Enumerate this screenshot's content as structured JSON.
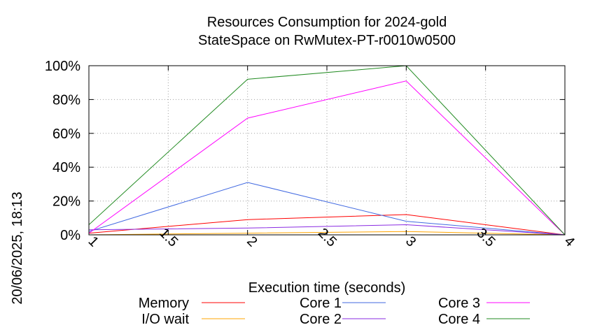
{
  "chart_data": {
    "type": "line",
    "title": "Resources Consumption for 2024-gold",
    "subtitle": "StateSpace on RwMutex-PT-r0010w0500",
    "xlabel": "Execution time (seconds)",
    "ylabel": "",
    "side_label": "20/06/2025, 18:13",
    "xlim": [
      1,
      4
    ],
    "ylim": [
      0,
      100
    ],
    "x_ticks": [
      "1",
      "1.5",
      "2",
      "2.5",
      "3",
      "3.5",
      "4"
    ],
    "x_tick_values": [
      1,
      1.5,
      2,
      2.5,
      3,
      3.5,
      4
    ],
    "y_ticks": [
      "0%",
      "20%",
      "40%",
      "60%",
      "80%",
      "100%"
    ],
    "y_tick_values": [
      0,
      20,
      40,
      60,
      80,
      100
    ],
    "grid": true,
    "legend_position": "bottom",
    "x": [
      1,
      2,
      3,
      4
    ],
    "series": [
      {
        "name": "Memory",
        "color": "#ff0000",
        "values": [
          1,
          9,
          12,
          0
        ]
      },
      {
        "name": "I/O wait",
        "color": "#ffa500",
        "values": [
          0,
          1,
          2,
          0
        ]
      },
      {
        "name": "Core 1",
        "color": "#4169e1",
        "values": [
          2,
          31,
          8,
          0
        ]
      },
      {
        "name": "Core 2",
        "color": "#8a2be2",
        "values": [
          3,
          4,
          6,
          0
        ]
      },
      {
        "name": "Core 3",
        "color": "#ff00ff",
        "values": [
          1,
          69,
          91,
          0
        ]
      },
      {
        "name": "Core 4",
        "color": "#228b22",
        "values": [
          6,
          92,
          100,
          0
        ]
      }
    ]
  }
}
